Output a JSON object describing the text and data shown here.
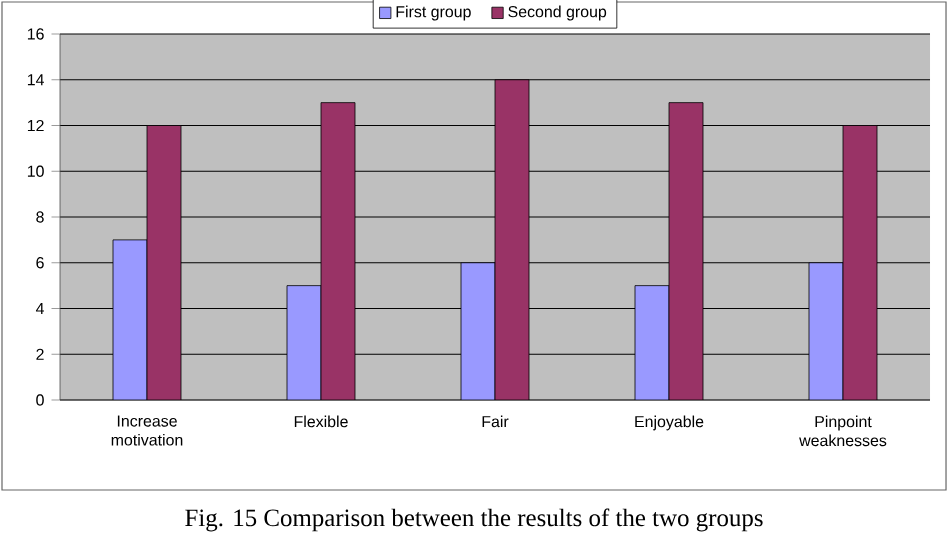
{
  "chart_data": {
    "type": "bar",
    "categories": [
      "Increase motivation",
      "Flexible",
      "Fair",
      "Enjoyable",
      "Pinpoint weaknesses"
    ],
    "series": [
      {
        "name": "First group",
        "color": "#9999ff",
        "values": [
          7,
          5,
          6,
          5,
          6
        ]
      },
      {
        "name": "Second group",
        "color": "#993366",
        "values": [
          12,
          13,
          14,
          13,
          12
        ]
      }
    ],
    "ylim": [
      0,
      16
    ],
    "yticks": [
      0,
      2,
      4,
      6,
      8,
      10,
      12,
      14,
      16
    ],
    "grid": "y",
    "legend": "top",
    "annotations": [
      "Fig. 15 Comparison between the results of the two groups"
    ]
  }
}
